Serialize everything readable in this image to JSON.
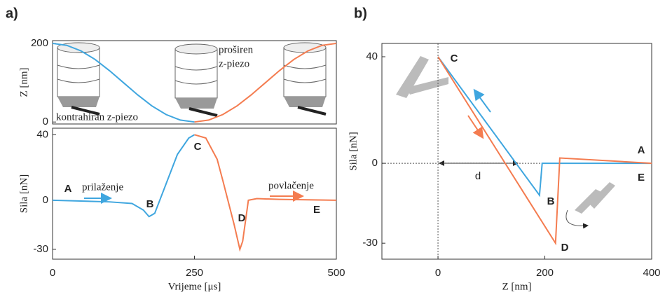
{
  "chart_data": [
    {
      "type": "line",
      "panel": "a)",
      "ylabel": "Z [nm]",
      "xlim": [
        0,
        500
      ],
      "ylim": [
        -5,
        207
      ],
      "yticks": [
        0,
        200
      ],
      "series": [
        {
          "color": "#3fa6df",
          "x": [
            0,
            25,
            50,
            75,
            100,
            125,
            150,
            175,
            200,
            225,
            250
          ],
          "values": [
            200,
            195,
            181,
            159,
            131,
            100,
            69,
            41,
            19,
            5,
            0
          ]
        },
        {
          "color": "#f47c50",
          "x": [
            250,
            275,
            300,
            325,
            350,
            375,
            400,
            425,
            450,
            475,
            500
          ],
          "values": [
            0,
            5,
            19,
            41,
            69,
            100,
            131,
            159,
            181,
            195,
            200
          ]
        }
      ],
      "annotations": [
        "kontrahiran z-piezo",
        "proširen",
        "z-piezo"
      ]
    },
    {
      "type": "line",
      "ylabel": "Sila [nN]",
      "xlabel": "Vrijeme [μs]",
      "xlim": [
        0,
        500
      ],
      "xticks": [
        0,
        250,
        500
      ],
      "ylim": [
        -36,
        44
      ],
      "yticks": [
        -30,
        0,
        40
      ],
      "series": [
        {
          "color": "#3fa6df",
          "x": [
            0,
            50,
            100,
            140,
            160,
            170,
            180,
            200,
            220,
            240,
            250
          ],
          "values": [
            0,
            -0.5,
            -1,
            -2,
            -6,
            -10,
            -8,
            10,
            28,
            38,
            40
          ]
        },
        {
          "color": "#f47c50",
          "x": [
            250,
            270,
            290,
            300,
            320,
            330,
            335,
            345,
            360,
            400,
            500
          ],
          "values": [
            40,
            38,
            25,
            12,
            -15,
            -30,
            -25,
            0,
            1,
            0.5,
            0
          ]
        }
      ],
      "annotations": [
        "A",
        "prilaženje",
        "B",
        "C",
        "D",
        "E",
        "povlačenje"
      ]
    },
    {
      "type": "line",
      "panel": "b)",
      "ylabel": "Sila [nN]",
      "xlabel": "Z [nm]",
      "xlim": [
        -105,
        400
      ],
      "xticks": [
        0,
        200,
        400
      ],
      "ylim": [
        -36,
        45
      ],
      "yticks": [
        -30,
        0,
        40
      ],
      "zero_lines": true,
      "series": [
        {
          "color": "#3fa6df",
          "x": [
            0,
            190,
            195,
            400
          ],
          "values": [
            40,
            -12,
            0,
            0
          ]
        },
        {
          "color": "#f47c50",
          "x": [
            0,
            220,
            228,
            400
          ],
          "values": [
            40,
            -30,
            2,
            0
          ]
        }
      ],
      "annotations": [
        "C",
        "d",
        "A",
        "E",
        "B",
        "D"
      ]
    }
  ]
}
